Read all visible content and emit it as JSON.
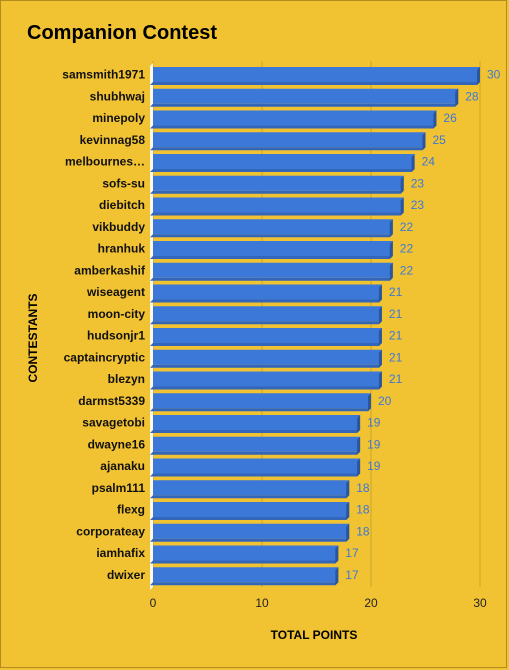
{
  "chart_data": {
    "type": "bar",
    "orientation": "horizontal",
    "title": "Companion Contest",
    "xlabel": "TOTAL POINTS",
    "ylabel": "CONTESTANTS",
    "xlim": [
      0,
      30
    ],
    "xticks": [
      0,
      10,
      20,
      30
    ],
    "grid": true,
    "bar_color": "#3c78d8",
    "label_color": "#3c78d8",
    "categories": [
      "samsmith1971",
      "shubhwaj",
      "minepoly",
      "kevinnag58",
      "melbournes…",
      "sofs-su",
      "diebitch",
      "vikbuddy",
      "hranhuk",
      "amberkashif",
      "wiseagent",
      "moon-city",
      "hudsonjr1",
      "captaincryptic",
      "blezyn",
      "darmst5339",
      "savagetobi",
      "dwayne16",
      "ajanaku",
      "psalm111",
      "flexg",
      "corporateay",
      "iamhafix",
      "dwixer"
    ],
    "values": [
      30,
      28,
      26,
      25,
      24,
      23,
      23,
      22,
      22,
      22,
      21,
      21,
      21,
      21,
      21,
      20,
      19,
      19,
      19,
      18,
      18,
      18,
      17,
      17
    ]
  }
}
